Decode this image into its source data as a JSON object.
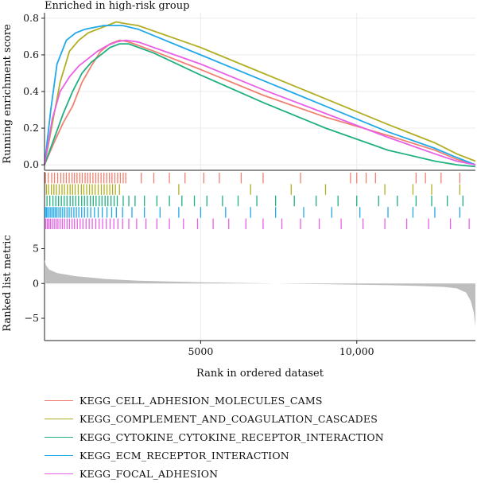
{
  "chart_data": {
    "type": "line",
    "title": "Enriched in high-risk group",
    "colors": [
      "#F08070",
      "#B1AE22",
      "#1FB080",
      "#20A8E8",
      "#E860E8"
    ],
    "series": [
      {
        "name": "KEGG_CELL_ADHESION_MOLECULES_CAMS",
        "color": "#F08070",
        "points": [
          [
            0,
            0.0
          ],
          [
            300,
            0.12
          ],
          [
            600,
            0.23
          ],
          [
            900,
            0.32
          ],
          [
            1200,
            0.45
          ],
          [
            1500,
            0.54
          ],
          [
            1800,
            0.62
          ],
          [
            2100,
            0.66
          ],
          [
            2400,
            0.68
          ],
          [
            2700,
            0.67
          ],
          [
            3500,
            0.62
          ],
          [
            5000,
            0.52
          ],
          [
            7000,
            0.38
          ],
          [
            9000,
            0.26
          ],
          [
            11000,
            0.16
          ],
          [
            12500,
            0.08
          ],
          [
            13200,
            0.03
          ],
          [
            13800,
            0.0
          ]
        ],
        "hits": [
          30,
          120,
          230,
          320,
          420,
          520,
          610,
          700,
          790,
          880,
          960,
          1040,
          1130,
          1210,
          1300,
          1380,
          1460,
          1550,
          1640,
          1720,
          1810,
          1900,
          1990,
          2080,
          2160,
          2250,
          2340,
          2430,
          2520,
          2600,
          3100,
          3500,
          4000,
          4500,
          5100,
          5600,
          6300,
          7000,
          8200,
          9800,
          10000,
          10300,
          10600,
          11900,
          12200,
          12700,
          13300
        ]
      },
      {
        "name": "KEGG_COMPLEMENT_AND_COAGULATION_CASCADES",
        "color": "#B1AE22",
        "points": [
          [
            0,
            0.0
          ],
          [
            200,
            0.18
          ],
          [
            500,
            0.45
          ],
          [
            800,
            0.62
          ],
          [
            1100,
            0.68
          ],
          [
            1400,
            0.72
          ],
          [
            1700,
            0.74
          ],
          [
            2000,
            0.76
          ],
          [
            2300,
            0.78
          ],
          [
            2600,
            0.77
          ],
          [
            3000,
            0.76
          ],
          [
            5000,
            0.64
          ],
          [
            7000,
            0.5
          ],
          [
            9000,
            0.36
          ],
          [
            11000,
            0.22
          ],
          [
            12500,
            0.12
          ],
          [
            13200,
            0.06
          ],
          [
            13800,
            0.02
          ]
        ],
        "hits": [
          60,
          130,
          220,
          300,
          380,
          470,
          560,
          640,
          730,
          820,
          900,
          980,
          1080,
          1180,
          1260,
          1350,
          1440,
          1530,
          1620,
          1720,
          1820,
          1910,
          2000,
          2090,
          2180,
          2270,
          2400,
          4300,
          6600,
          7900,
          9000,
          10900,
          11800,
          12400,
          13300
        ]
      },
      {
        "name": "KEGG_CYTOKINE_CYTOKINE_RECEPTOR_INTERACTION",
        "color": "#1FB080",
        "points": [
          [
            0,
            0.0
          ],
          [
            300,
            0.14
          ],
          [
            600,
            0.28
          ],
          [
            900,
            0.4
          ],
          [
            1200,
            0.5
          ],
          [
            1500,
            0.56
          ],
          [
            1800,
            0.6
          ],
          [
            2100,
            0.64
          ],
          [
            2400,
            0.66
          ],
          [
            2700,
            0.66
          ],
          [
            3500,
            0.61
          ],
          [
            5000,
            0.49
          ],
          [
            7000,
            0.34
          ],
          [
            9000,
            0.2
          ],
          [
            11000,
            0.08
          ],
          [
            12500,
            0.02
          ],
          [
            13200,
            0.0
          ],
          [
            13800,
            -0.01
          ]
        ],
        "hits": [
          80,
          170,
          270,
          360,
          450,
          540,
          630,
          720,
          820,
          910,
          1000,
          1090,
          1190,
          1280,
          1370,
          1470,
          1560,
          1650,
          1750,
          1840,
          1940,
          2030,
          2130,
          2230,
          2330,
          2520,
          2700,
          2900,
          3200,
          3600,
          4000,
          4400,
          4800,
          5200,
          5700,
          6200,
          6800,
          7400,
          8000,
          8700,
          9400,
          10000,
          10700,
          11300,
          11900,
          12400,
          12900,
          13400
        ]
      },
      {
        "name": "KEGG_ECM_RECEPTOR_INTERACTION",
        "color": "#20A8E8",
        "points": [
          [
            0,
            0.0
          ],
          [
            200,
            0.3
          ],
          [
            400,
            0.55
          ],
          [
            700,
            0.68
          ],
          [
            1000,
            0.72
          ],
          [
            1300,
            0.74
          ],
          [
            1600,
            0.75
          ],
          [
            1900,
            0.76
          ],
          [
            2200,
            0.76
          ],
          [
            2500,
            0.76
          ],
          [
            3000,
            0.74
          ],
          [
            5000,
            0.6
          ],
          [
            7000,
            0.46
          ],
          [
            9000,
            0.32
          ],
          [
            11000,
            0.18
          ],
          [
            12500,
            0.09
          ],
          [
            13200,
            0.04
          ],
          [
            13800,
            0.0
          ]
        ],
        "hits": [
          20,
          60,
          100,
          150,
          200,
          250,
          300,
          350,
          400,
          460,
          520,
          580,
          650,
          720,
          790,
          860,
          940,
          1020,
          1100,
          1190,
          1280,
          1380,
          1480,
          1600,
          1720,
          1850,
          2000,
          2150,
          2300,
          2500,
          2800,
          3200,
          3700,
          4300,
          5000,
          5800,
          6600,
          7400,
          8300,
          9200,
          10100,
          11000,
          11800,
          12500,
          13300
        ]
      },
      {
        "name": "KEGG_FOCAL_ADHESION",
        "color": "#E860E8",
        "points": [
          [
            0,
            0.0
          ],
          [
            250,
            0.25
          ],
          [
            500,
            0.4
          ],
          [
            800,
            0.48
          ],
          [
            1100,
            0.54
          ],
          [
            1400,
            0.58
          ],
          [
            1700,
            0.62
          ],
          [
            2000,
            0.65
          ],
          [
            2300,
            0.67
          ],
          [
            2600,
            0.68
          ],
          [
            3000,
            0.67
          ],
          [
            5000,
            0.55
          ],
          [
            7000,
            0.41
          ],
          [
            9000,
            0.28
          ],
          [
            11000,
            0.15
          ],
          [
            12500,
            0.06
          ],
          [
            13200,
            0.02
          ],
          [
            13800,
            0.0
          ]
        ],
        "hits": [
          40,
          90,
          140,
          190,
          250,
          310,
          370,
          430,
          500,
          570,
          640,
          720,
          800,
          880,
          960,
          1050,
          1140,
          1230,
          1330,
          1430,
          1530,
          1640,
          1750,
          1860,
          1980,
          2100,
          2220,
          2350,
          2500,
          2700,
          2950,
          3250,
          3600,
          4000,
          4450,
          4900,
          5400,
          5900,
          6450,
          7000,
          7600,
          8200,
          8800,
          9500,
          10200,
          10900,
          11600,
          12300,
          13000,
          13600
        ]
      }
    ],
    "es_panel": {
      "ylabel": "Running enrichment score",
      "ylim": [
        -0.03,
        0.83
      ],
      "yticks": [
        0.0,
        0.2,
        0.4,
        0.6,
        0.8
      ],
      "ytick_labels": [
        "0.0",
        "0.2",
        "0.4",
        "0.6",
        "0.8"
      ]
    },
    "metric_panel": {
      "ylabel": "Ranked list metric",
      "ylim": [
        -8.2,
        7.8
      ],
      "yticks": [
        -5,
        0,
        5
      ],
      "ytick_labels": [
        "−5",
        "0",
        "5"
      ],
      "fill_color": "#BEBEBE",
      "curve": [
        [
          0,
          3.4
        ],
        [
          50,
          2.6
        ],
        [
          150,
          2.0
        ],
        [
          400,
          1.5
        ],
        [
          1000,
          1.05
        ],
        [
          2000,
          0.62
        ],
        [
          3000,
          0.4
        ],
        [
          4000,
          0.28
        ],
        [
          5000,
          0.18
        ],
        [
          6000,
          0.1
        ],
        [
          7000,
          0.03
        ],
        [
          8000,
          -0.04
        ],
        [
          9000,
          -0.1
        ],
        [
          10000,
          -0.17
        ],
        [
          11000,
          -0.25
        ],
        [
          12000,
          -0.36
        ],
        [
          12800,
          -0.5
        ],
        [
          13200,
          -0.7
        ],
        [
          13500,
          -1.3
        ],
        [
          13650,
          -2.5
        ],
        [
          13750,
          -4.2
        ],
        [
          13800,
          -6.2
        ]
      ]
    },
    "xlim": [
      0,
      13800
    ],
    "xticks": [
      5000,
      10000
    ],
    "xtick_labels": [
      "5000",
      "10,000"
    ],
    "xlabel": "Rank in ordered dataset",
    "grid": true,
    "legend_position": "bottom"
  }
}
